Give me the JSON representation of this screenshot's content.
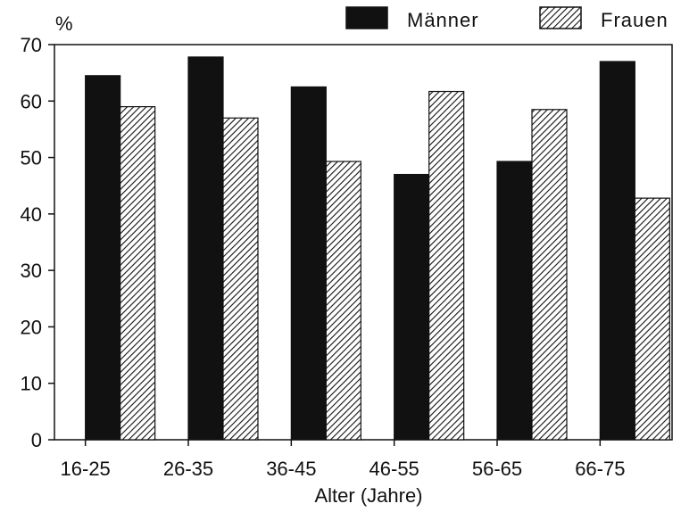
{
  "chart_data": {
    "type": "bar",
    "title": "",
    "ylabel": "%",
    "xlabel": "Alter (Jahre)",
    "ylim": [
      0,
      70
    ],
    "yticks": [
      0,
      10,
      20,
      30,
      40,
      50,
      60,
      70
    ],
    "categories": [
      "16-25",
      "26-35",
      "36-45",
      "46-55",
      "56-65",
      "66-75"
    ],
    "series": [
      {
        "name": "Männer",
        "values": [
          64.5,
          67.8,
          62.5,
          47,
          49.3,
          67
        ],
        "color": "#111111",
        "pattern": "solid"
      },
      {
        "name": "Frauen",
        "values": [
          59,
          57,
          49.3,
          61.7,
          58.5,
          42.8
        ],
        "color": "#111111",
        "pattern": "diagonal-hatch"
      }
    ],
    "legend": "top-right",
    "grid": false
  }
}
